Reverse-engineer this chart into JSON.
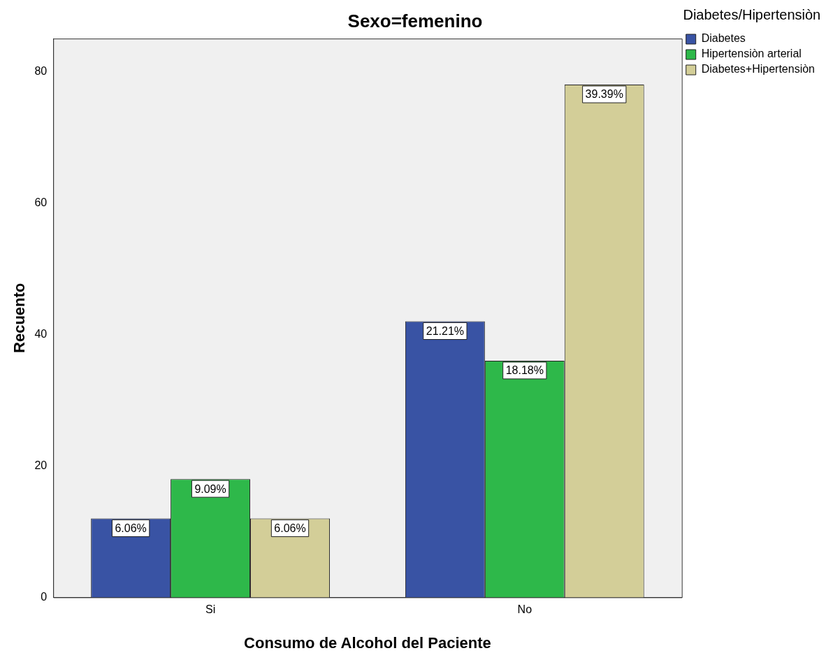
{
  "chart_data": {
    "type": "bar",
    "title": "Sexo=femenino",
    "xlabel": "Consumo de Alcohol del Paciente",
    "ylabel": "Recuento",
    "legend_title": "Diabetes/Hipertensiòn",
    "categories": [
      "Si",
      "No"
    ],
    "series": [
      {
        "name": "Diabetes",
        "color": "#3953a4",
        "values": [
          12,
          42
        ]
      },
      {
        "name": "Hipertensiòn arterial",
        "color": "#2eb84a",
        "values": [
          18,
          36
        ]
      },
      {
        "name": "Diabetes+Hipertensiòn",
        "color": "#d3ce98",
        "values": [
          12,
          78
        ]
      }
    ],
    "annotations": [
      "6.06%",
      "21.21%",
      "9.09%",
      "18.18%",
      "6.06%",
      "39.39%"
    ],
    "ylim": [
      0,
      85
    ],
    "yticks": [
      0,
      20,
      40,
      60,
      80
    ],
    "grid": false,
    "legend": "top right"
  }
}
